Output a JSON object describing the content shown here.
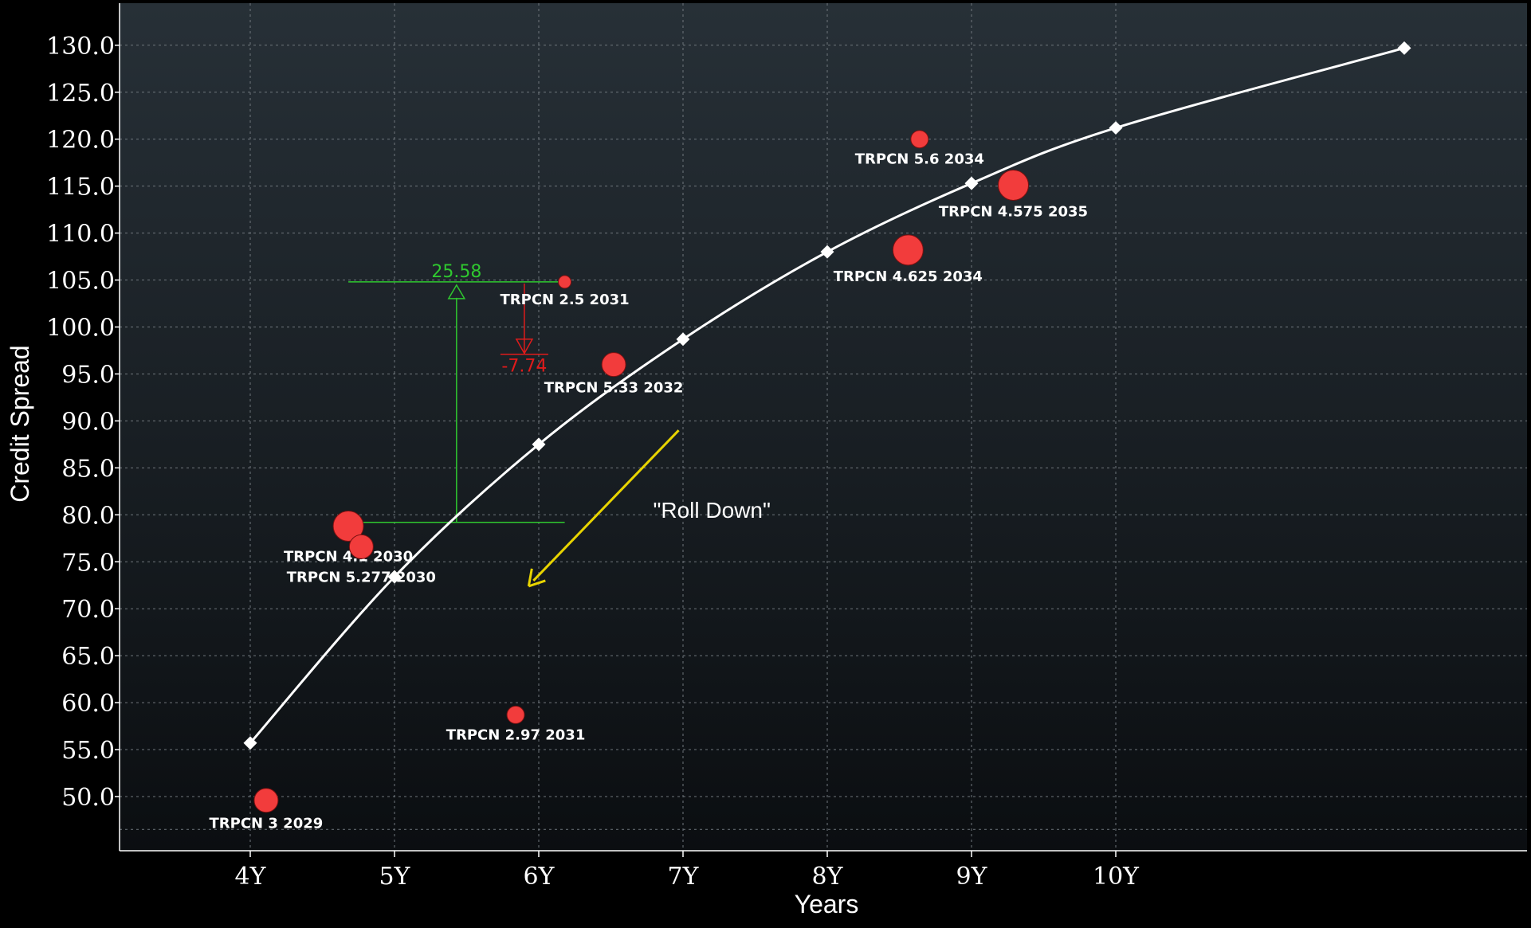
{
  "chart_data": {
    "type": "scatter",
    "title": "",
    "xlabel": "Years",
    "ylabel": "Credit Spread",
    "xlim": [
      3.2,
      12.4
    ],
    "ylim": [
      45.0,
      132.0
    ],
    "x_ticks": [
      4,
      5,
      6,
      7,
      8,
      9,
      10
    ],
    "x_tick_labels": [
      "4Y",
      "5Y",
      "6Y",
      "7Y",
      "8Y",
      "9Y",
      "10Y"
    ],
    "y_ticks": [
      50,
      55,
      60,
      65,
      70,
      75,
      80,
      85,
      90,
      95,
      100,
      105,
      110,
      115,
      120,
      125,
      130
    ],
    "y_tick_labels": [
      "50.0",
      "55.0",
      "60.0",
      "65.0",
      "70.0",
      "75.0",
      "80.0",
      "85.0",
      "90.0",
      "95.0",
      "100.0",
      "105.0",
      "110.0",
      "115.0",
      "120.0",
      "125.0",
      "130.0"
    ],
    "grid": true,
    "curve": {
      "x": [
        4,
        5,
        6,
        7,
        8,
        9,
        10,
        12
      ],
      "y": [
        55.7,
        73.4,
        87.5,
        98.7,
        108.0,
        115.3,
        121.2,
        129.7
      ],
      "color": "#ffffff"
    },
    "bonds": [
      {
        "label": "TRPCN 3 2029",
        "x": 4.11,
        "y": 49.6,
        "size": "medium"
      },
      {
        "label": "TRPCN 4.1 2030",
        "x": 4.68,
        "y": 78.8,
        "size": "large"
      },
      {
        "label": "TRPCN 5.277 2030",
        "x": 4.77,
        "y": 76.6,
        "size": "medium"
      },
      {
        "label": "TRPCN 2.97 2031",
        "x": 5.84,
        "y": 58.7,
        "size": "small"
      },
      {
        "label": "TRPCN 2.5 2031",
        "x": 6.18,
        "y": 104.8,
        "size": "tiny"
      },
      {
        "label": "TRPCN 5.33 2032",
        "x": 6.52,
        "y": 96.0,
        "size": "medium"
      },
      {
        "label": "TRPCN 4.625 2034",
        "x": 8.56,
        "y": 108.2,
        "size": "large"
      },
      {
        "label": "TRPCN 5.6 2034",
        "x": 8.64,
        "y": 120.0,
        "size": "small"
      },
      {
        "label": "TRPCN 4.575 2035",
        "x": 9.29,
        "y": 115.1,
        "size": "large"
      }
    ],
    "annotations": {
      "rolldown_value": "25.58",
      "spread_change_value": "-7.74",
      "roll_label": "\"Roll Down\""
    },
    "colors": {
      "background_top": "#273037",
      "background_bottom": "#0b0e11",
      "bond_fill": "#f23c3c",
      "green": "#2fc82f",
      "red": "#e01b1b",
      "yellow": "#e8d400"
    }
  }
}
